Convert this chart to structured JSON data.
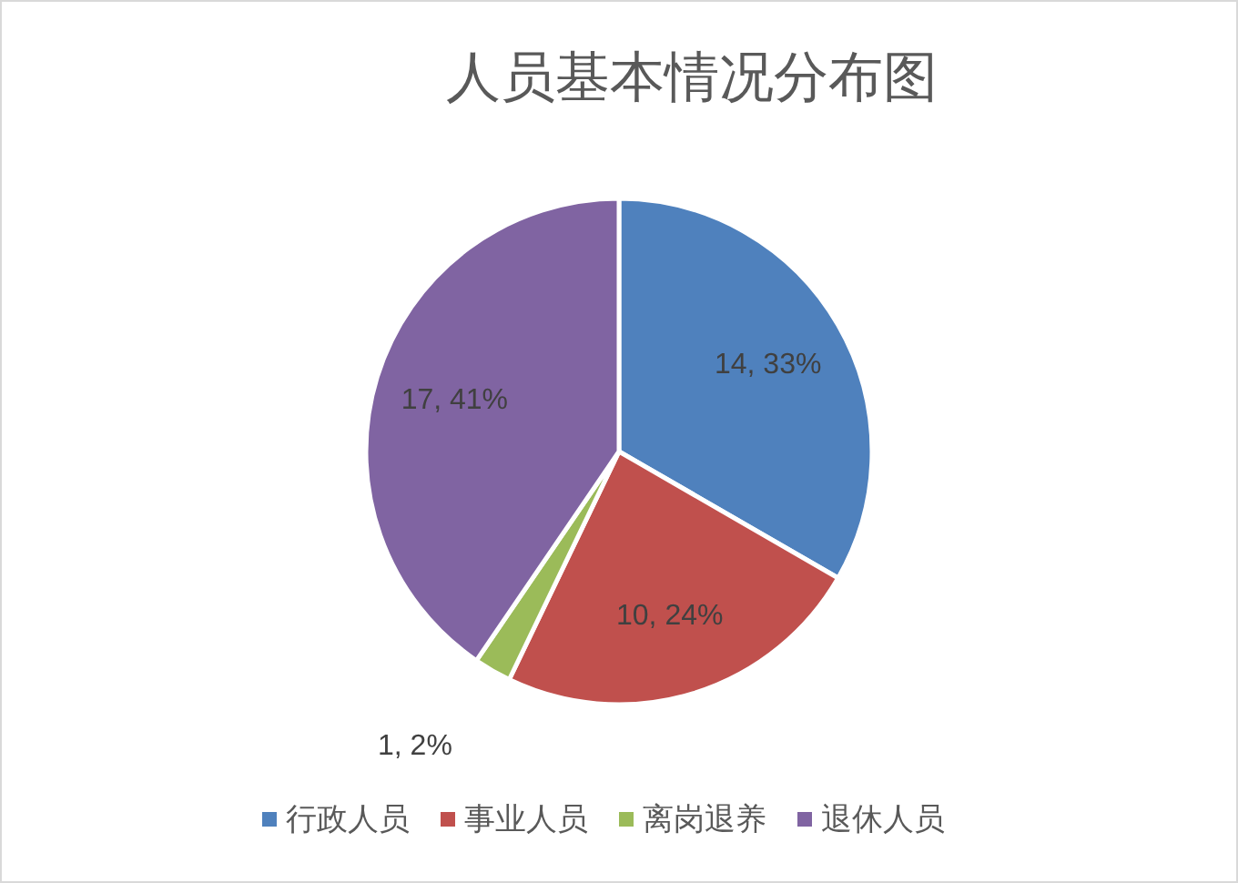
{
  "chart_data": {
    "type": "pie",
    "title": "人员基本情况分布图",
    "categories": [
      "行政人员",
      "事业人员",
      "离岗退养",
      "退休人员"
    ],
    "values": [
      14,
      10,
      1,
      17
    ],
    "colors": [
      "#4f81bd",
      "#c0504d",
      "#9bbb59",
      "#8064a2"
    ],
    "value_labels": [
      "14, 33%",
      "10, 24%",
      "1, 2%",
      "17, 41%"
    ],
    "legend": "bottom"
  }
}
